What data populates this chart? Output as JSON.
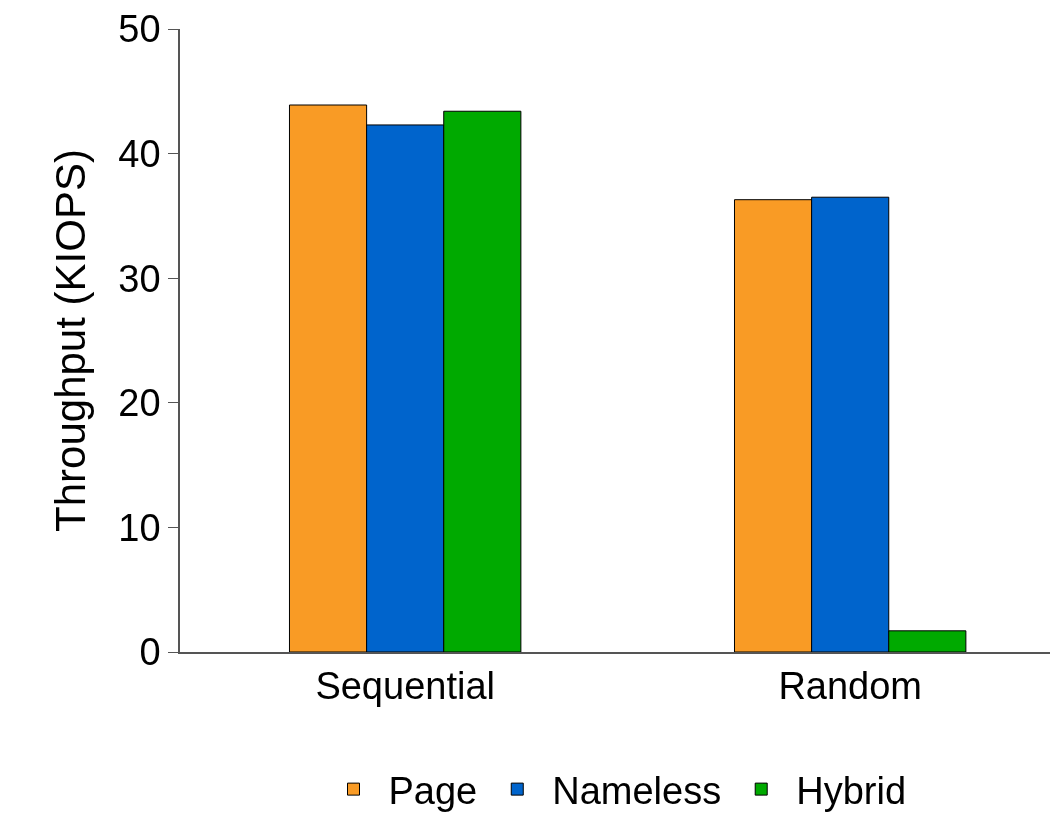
{
  "chart_data": {
    "type": "bar",
    "ylabel": "Throughput (KIOPS)",
    "categories": [
      "Sequential",
      "Random"
    ],
    "series": [
      {
        "name": "Page",
        "color": "#f99b25",
        "values": [
          43.9,
          36.3
        ]
      },
      {
        "name": "Nameless",
        "color": "#0064cc",
        "values": [
          42.3,
          36.5
        ]
      },
      {
        "name": "Hybrid",
        "color": "#00aa00",
        "values": [
          43.4,
          1.7
        ]
      }
    ],
    "ylim": [
      0,
      50
    ],
    "yticks": [
      0,
      10,
      20,
      30,
      40,
      50
    ],
    "grid": false,
    "legend": "bottom"
  }
}
